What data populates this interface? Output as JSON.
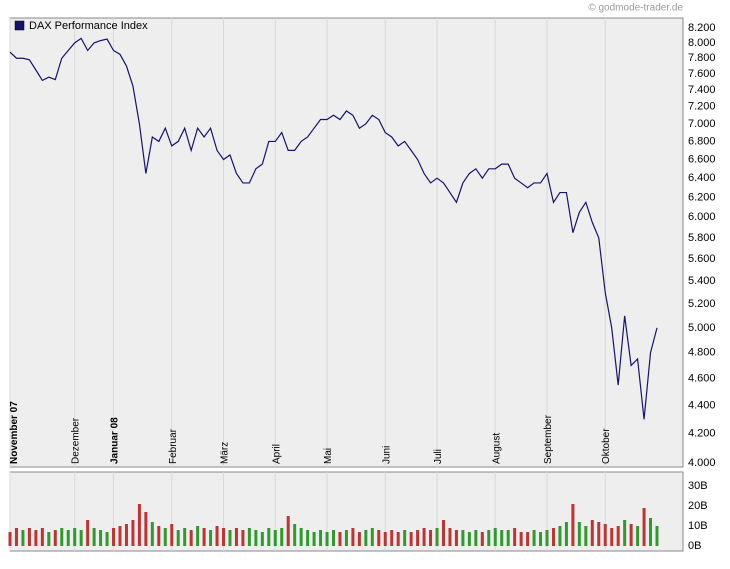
{
  "chart_data": {
    "type": "line",
    "legend": "DAX Performance Index",
    "source": "© godmode-trader.de",
    "categories": [
      "November 07",
      null,
      null,
      null,
      null,
      null,
      null,
      null,
      null,
      null,
      "Dezember",
      null,
      null,
      null,
      null,
      null,
      "Januar 08",
      null,
      null,
      null,
      null,
      null,
      null,
      null,
      null,
      "Februar",
      null,
      null,
      null,
      null,
      null,
      null,
      null,
      "März",
      null,
      null,
      null,
      null,
      null,
      null,
      null,
      "April",
      null,
      null,
      null,
      null,
      null,
      null,
      null,
      "Mai",
      null,
      null,
      null,
      null,
      null,
      null,
      null,
      null,
      "Juni",
      null,
      null,
      null,
      null,
      null,
      null,
      null,
      "Juli",
      null,
      null,
      null,
      null,
      null,
      null,
      null,
      null,
      "August",
      null,
      null,
      null,
      null,
      null,
      null,
      null,
      "September",
      null,
      null,
      null,
      null,
      null,
      null,
      null,
      null,
      "Oktober",
      null,
      null,
      null,
      null,
      null,
      null,
      null,
      null
    ],
    "series": [
      {
        "name": "DAX Performance Index",
        "color": "#14146e",
        "values": [
          7880,
          7800,
          7800,
          7780,
          7650,
          7520,
          7560,
          7530,
          7800,
          7900,
          8000,
          8060,
          7900,
          8000,
          8030,
          8050,
          7900,
          7850,
          7700,
          7450,
          7000,
          6450,
          6850,
          6800,
          6950,
          6750,
          6800,
          6950,
          6700,
          6950,
          6850,
          6950,
          6700,
          6600,
          6650,
          6450,
          6350,
          6350,
          6500,
          6550,
          6800,
          6800,
          6900,
          6700,
          6700,
          6800,
          6850,
          6950,
          7050,
          7050,
          7100,
          7050,
          7150,
          7100,
          6950,
          7000,
          7100,
          7050,
          6900,
          6850,
          6750,
          6800,
          6700,
          6600,
          6450,
          6350,
          6400,
          6350,
          6250,
          6150,
          6350,
          6450,
          6500,
          6400,
          6500,
          6500,
          6550,
          6550,
          6400,
          6350,
          6300,
          6350,
          6350,
          6450,
          6150,
          6250,
          6250,
          5850,
          6050,
          6150,
          5950,
          5800,
          5300,
          5000,
          4550,
          5100,
          4700,
          4750,
          4300,
          4800,
          5000
        ]
      }
    ],
    "ylog": true,
    "ylim": [
      3975,
      8335
    ],
    "yticks": [
      {
        "value": 4000,
        "label": "4.000"
      },
      {
        "value": 4200,
        "label": "4.200"
      },
      {
        "value": 4400,
        "label": "4.400"
      },
      {
        "value": 4600,
        "label": "4.600"
      },
      {
        "value": 4800,
        "label": "4.800"
      },
      {
        "value": 5000,
        "label": "5.000"
      },
      {
        "value": 5200,
        "label": "5.200"
      },
      {
        "value": 5400,
        "label": "5.400"
      },
      {
        "value": 5600,
        "label": "5.600"
      },
      {
        "value": 5800,
        "label": "5.800"
      },
      {
        "value": 6000,
        "label": "6.000"
      },
      {
        "value": 6200,
        "label": "6.200"
      },
      {
        "value": 6400,
        "label": "6.400"
      },
      {
        "value": 6600,
        "label": "6.600"
      },
      {
        "value": 6800,
        "label": "6.800"
      },
      {
        "value": 7000,
        "label": "7.000"
      },
      {
        "value": 7200,
        "label": "7.200"
      },
      {
        "value": 7400,
        "label": "7.400"
      },
      {
        "value": 7600,
        "label": "7.600"
      },
      {
        "value": 7800,
        "label": "7.800"
      },
      {
        "value": 8000,
        "label": "8.000"
      },
      {
        "value": 8200,
        "label": "8.200"
      }
    ],
    "grid": true,
    "volume": {
      "values": [
        7,
        9,
        8,
        9,
        8,
        9,
        7,
        8,
        9,
        8,
        9,
        8,
        13,
        9,
        8,
        7,
        9,
        10,
        11,
        13,
        21,
        17,
        12,
        10,
        9,
        11,
        8,
        9,
        8,
        10,
        9,
        8,
        10,
        9,
        8,
        9,
        8,
        9,
        8,
        7,
        9,
        8,
        9,
        15,
        11,
        9,
        8,
        7,
        8,
        7,
        8,
        7,
        8,
        9,
        7,
        8,
        9,
        8,
        7,
        8,
        7,
        8,
        7,
        8,
        9,
        8,
        9,
        13,
        9,
        8,
        8,
        7,
        8,
        7,
        8,
        9,
        8,
        8,
        9,
        7,
        7,
        8,
        7,
        8,
        9,
        10,
        12,
        21,
        12,
        10,
        13,
        12,
        11,
        9,
        10,
        13,
        11,
        10,
        19,
        14,
        10
      ],
      "up_color": "#2f9a2f",
      "down_color": "#c23232",
      "ylim": [
        0,
        37
      ],
      "yticks": [
        {
          "value": 0,
          "label": "0B"
        },
        {
          "value": 10,
          "label": "10B"
        },
        {
          "value": 20,
          "label": "20B"
        },
        {
          "value": 30,
          "label": "30B"
        }
      ]
    }
  }
}
